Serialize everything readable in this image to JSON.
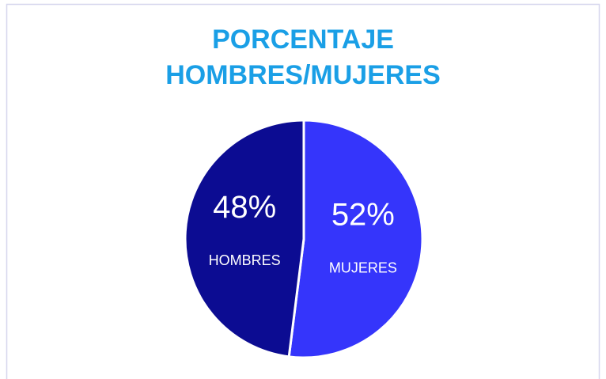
{
  "chart_data": {
    "type": "pie",
    "title": [
      "PORCENTAJE",
      "HOMBRES/MUJERES"
    ],
    "categories": [
      "HOMBRES",
      "MUJERES"
    ],
    "values": [
      48,
      52
    ],
    "value_labels": [
      "48%",
      "52%"
    ],
    "colors": [
      "#0c0c92",
      "#3535fb"
    ],
    "title_color": "#1a9fe6"
  }
}
